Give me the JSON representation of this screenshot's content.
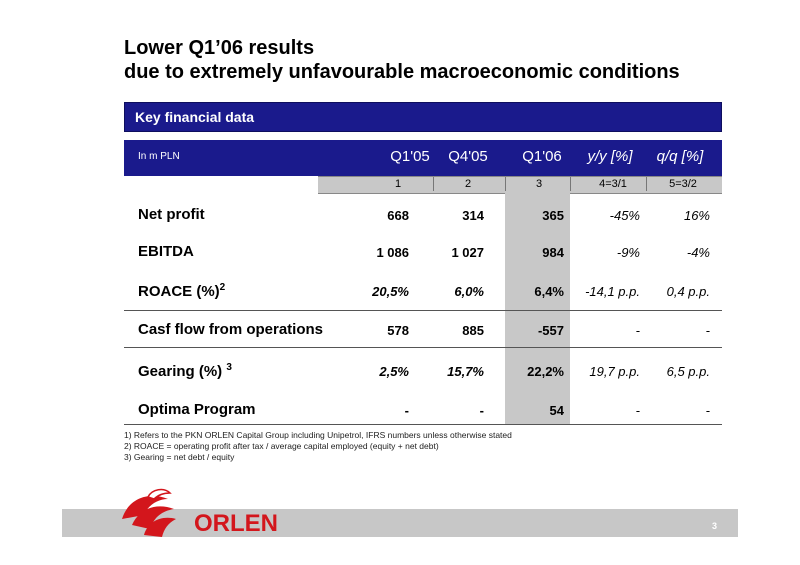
{
  "title": {
    "line1": "Lower Q1’06 results",
    "line2": "due to extremely unfavourable macroeconomic conditions"
  },
  "banner": "Key financial data",
  "table": {
    "unit": "In m PLN",
    "columns": [
      "Q1'05",
      "Q4'05",
      "Q1'06",
      "y/y [%]",
      "q/q [%]"
    ],
    "column_numbers": [
      "1",
      "2",
      "3",
      "4=3/1",
      "5=3/2"
    ],
    "rows": [
      {
        "label": "Net profit",
        "sup": "",
        "values": [
          "668",
          "314",
          "365",
          "-45%",
          "16%"
        ]
      },
      {
        "label": "EBITDA",
        "sup": "",
        "values": [
          "1 086",
          "1 027",
          "984",
          "-9%",
          "-4%"
        ]
      },
      {
        "label": "ROACE  (%)",
        "sup": "2",
        "values": [
          "20,5%",
          "6,0%",
          "6,4%",
          "-14,1 p.p.",
          "0,4 p.p."
        ]
      },
      {
        "label": "Casf flow from operations",
        "sup": "",
        "values": [
          "578",
          "885",
          "-557",
          "-",
          "-"
        ]
      },
      {
        "label": "Gearing (%) ",
        "sup": "3",
        "values": [
          "2,5%",
          "15,7%",
          "22,2%",
          "19,7 p.p.",
          "6,5 p.p."
        ]
      },
      {
        "label": "Optima Program",
        "sup": "",
        "values": [
          "-",
          "-",
          "54",
          "-",
          "-"
        ]
      }
    ]
  },
  "footnotes": [
    "1)   Refers to the PKN ORLEN Capital Group including Unipetrol, IFRS numbers unless otherwise stated",
    "2)   ROACE = operating profit after tax / average capital employed (equity + net debt)",
    "3)   Gearing = net debt / equity"
  ],
  "logo_text": "ORLEN",
  "page_number": "3",
  "colors": {
    "header_blue": "#1a1a8c",
    "shade_gray": "#c8c8c8",
    "brand_red": "#d3161c"
  }
}
